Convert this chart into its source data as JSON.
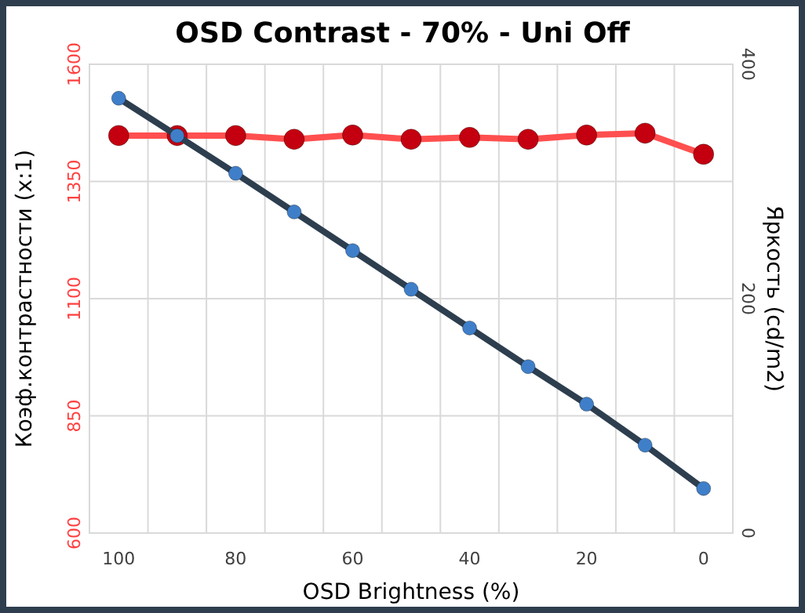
{
  "chart_data": {
    "type": "line",
    "title": "OSD Contrast - 70% - Uni Off",
    "xlabel": "OSD Brightness (%)",
    "ylabel": "Коэф.контрастности (x:1)",
    "y2label": "Яркость (cd/m2)",
    "categories": [
      "100",
      null,
      "80",
      null,
      "60",
      null,
      "40",
      null,
      "20",
      null,
      "0"
    ],
    "series": [
      {
        "color": "#ff4f4f",
        "values": [
          1448,
          1448,
          1448,
          1440,
          1449,
          1440,
          1444,
          1440,
          1449,
          1453,
          1408
        ]
      },
      {
        "color": "#2d3e4f",
        "axis": "y2",
        "values": [
          371,
          339,
          307,
          274,
          241,
          208,
          175,
          142,
          110,
          75,
          38
        ]
      }
    ],
    "ylim": [
      600,
      1600
    ],
    "yticks": [
      600,
      850,
      1100,
      1350,
      1600
    ],
    "y2lim": [
      0,
      400
    ],
    "y2ticks": [
      0,
      200,
      400
    ],
    "grid": true,
    "marker": "circle",
    "line_style": "solid"
  }
}
